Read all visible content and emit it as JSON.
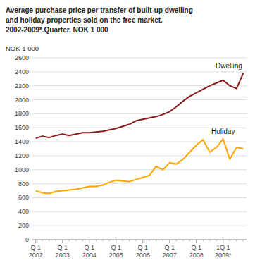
{
  "chart_data": {
    "type": "line",
    "title": "Average purchase price per transfer of built-up dwelling\nand holiday properties sold on the free market.\n2002-2009*.Quarter. NOK 1 000",
    "ylabel": "NOK 1 000",
    "categories": [
      "Q 1\n2002",
      null,
      null,
      null,
      "Q 1\n2003",
      null,
      null,
      null,
      "Q 1\n2004",
      null,
      null,
      null,
      "Q 1\n2005",
      null,
      null,
      null,
      "Q 1\n2006",
      null,
      null,
      null,
      "Q 1\n2007",
      null,
      null,
      null,
      "Q 1\n2008",
      null,
      null,
      null,
      "1Q 1\n2009*",
      null,
      null,
      null
    ],
    "series": [
      {
        "name": "Dwelling",
        "color": "#8B1A1A",
        "values": [
          1450,
          1480,
          1460,
          1490,
          1510,
          1490,
          1510,
          1530,
          1530,
          1540,
          1550,
          1570,
          1590,
          1620,
          1650,
          1700,
          1720,
          1740,
          1760,
          1790,
          1830,
          1900,
          1980,
          2050,
          2100,
          2150,
          2200,
          2240,
          2280,
          2200,
          2160,
          2380
        ]
      },
      {
        "name": "Holiday",
        "color": "#FFA500",
        "values": [
          700,
          670,
          660,
          690,
          700,
          710,
          720,
          740,
          760,
          760,
          780,
          820,
          850,
          840,
          830,
          860,
          890,
          920,
          1050,
          1000,
          1100,
          1080,
          1150,
          1250,
          1350,
          1430,
          1250,
          1320,
          1440,
          1150,
          1320,
          1300
        ]
      }
    ],
    "ylim": [
      0,
      2600
    ],
    "yticks": [
      0,
      200,
      400,
      600,
      800,
      1000,
      1200,
      1400,
      1600,
      1800,
      2000,
      2200,
      2400,
      2600
    ],
    "grid": true
  }
}
